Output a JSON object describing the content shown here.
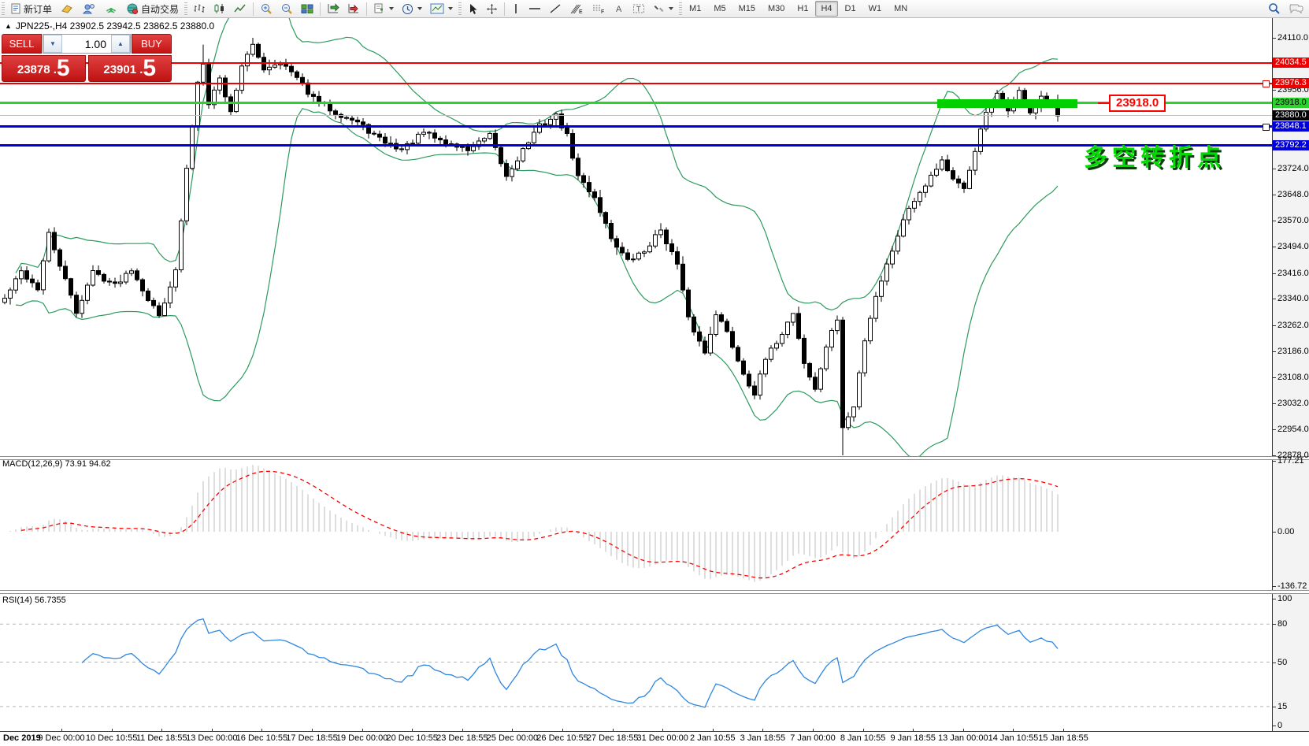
{
  "toolbar": {
    "new_order_label": "新订单",
    "autotrading_label": "自动交易",
    "timeframes": [
      "M1",
      "M5",
      "M15",
      "M30",
      "H1",
      "H4",
      "D1",
      "W1",
      "MN"
    ],
    "active_timeframe": "H4",
    "icons": [
      "new-order",
      "market",
      "profiles",
      "signals",
      "autotrading",
      "bar-chart",
      "candlestick-chart",
      "line-chart",
      "zoom-in",
      "zoom-out",
      "tile-windows",
      "auto-scroll",
      "chart-shift",
      "new-chart",
      "periods-clock",
      "chart-template",
      "cursor",
      "crosshair",
      "vertical-line",
      "horizontal-line",
      "trend-line",
      "fibonacci-expansion",
      "fibonacci-fan",
      "text",
      "text-label",
      "arrows",
      "search",
      "chat"
    ]
  },
  "chart": {
    "title": "JPN225-,H4  23902.5 23942.5 23862.5 23880.0",
    "symbol": "JPN225-",
    "period": "H4"
  },
  "trade_panel": {
    "sell_label": "SELL",
    "buy_label": "BUY",
    "volume": "1.00",
    "sell_price_small": "23878 .",
    "sell_price_big": "5",
    "buy_price_small": "23901 .",
    "buy_price_big": "5"
  },
  "price_axis": {
    "ticks": [
      "24110.0",
      "23956.0",
      "23724.0",
      "23648.0",
      "23570.0",
      "23494.0",
      "23416.0",
      "23340.0",
      "23262.0",
      "23186.0",
      "23108.0",
      "23032.0",
      "22954.0",
      "22878.0"
    ],
    "boxed": [
      {
        "text": "24034.5",
        "bg": "#ee0000",
        "fg": "#ffffff"
      },
      {
        "text": "23976.3",
        "bg": "#ee0000",
        "fg": "#ffffff"
      },
      {
        "text": "23918.0",
        "bg": "#2bd42b",
        "fg": "#000000"
      },
      {
        "text": "23880.0",
        "bg": "#000000",
        "fg": "#ffffff"
      },
      {
        "text": "23848.1",
        "bg": "#0000dd",
        "fg": "#ffffff"
      },
      {
        "text": "23792.2",
        "bg": "#0000dd",
        "fg": "#ffffff"
      }
    ]
  },
  "levels": [
    {
      "price": 24034.5,
      "color": "#ee0000",
      "thickness": 2,
      "handle": false
    },
    {
      "price": 23976.3,
      "color": "#ee0000",
      "thickness": 2,
      "handle": true
    },
    {
      "price": 23918.0,
      "color": "#2bd42b",
      "thickness": 3,
      "handle": false
    },
    {
      "price": 23880.0,
      "color": "#bcbcbc",
      "thickness": 1,
      "handle": false
    },
    {
      "price": 23848.1,
      "color": "#0000dd",
      "thickness": 3,
      "handle": true
    },
    {
      "price": 23792.2,
      "color": "#0000dd",
      "thickness": 3,
      "handle": false
    }
  ],
  "annotations": {
    "price_flag": "23918.0",
    "note": "多空转折点"
  },
  "indicators": {
    "macd": {
      "label": "MACD(12,26,9) 73.91 94.62",
      "axis": [
        "177.21",
        "0.00",
        "-136.72"
      ]
    },
    "rsi": {
      "label": "RSI(14) 56.7355",
      "axis": [
        "100",
        "80",
        "50",
        "15",
        "0"
      ],
      "levels": [
        80,
        50,
        15
      ]
    }
  },
  "time_axis": [
    "Dec 2019",
    "9 Dec 00:00",
    "10 Dec 10:55",
    "11 Dec 18:55",
    "13 Dec 00:00",
    "16 Dec 10:55",
    "17 Dec 18:55",
    "19 Dec 00:00",
    "20 Dec 10:55",
    "23 Dec 18:55",
    "25 Dec 00:00",
    "26 Dec 10:55",
    "27 Dec 18:55",
    "31 Dec 00:00",
    "2 Jan 10:55",
    "3 Jan 18:55",
    "7 Jan 00:00",
    "8 Jan 10:55",
    "9 Jan 18:55",
    "13 Jan 00:00",
    "14 Jan 10:55",
    "15 Jan 18:55"
  ],
  "colors": {
    "level_red": "#ee0000",
    "level_green": "#2bd42b",
    "level_blue": "#0000dd",
    "current_price_gray": "#bcbcbc",
    "bollinger": "#2c9a5e",
    "rsi_line": "#2e86e0",
    "macd_hist": "#bdbdbd",
    "macd_signal": "#ff0000",
    "note_green": "#00dc00",
    "bull_candle": "#ffffff",
    "bear_candle": "#000000"
  },
  "chart_data": {
    "type": "candlestick",
    "symbol": "JPN225-",
    "timeframe": "H4",
    "ohlc_current": {
      "open": 23902.5,
      "high": 23942.5,
      "low": 23862.5,
      "close": 23880.0
    },
    "y_axis_range": [
      22878.0,
      24110.0
    ],
    "price_levels": [
      24034.5,
      23976.3,
      23918.0,
      23880.0,
      23848.1,
      23792.2
    ],
    "bid": 23878.5,
    "ask": 23901.5,
    "macd_values": {
      "macd": 73.91,
      "signal": 94.62,
      "range": [
        -136.72,
        177.21
      ]
    },
    "rsi_value": 56.7355,
    "bars": 192,
    "extreme_high": 24110.0,
    "extreme_low": 22878.0,
    "close_anchors": [
      [
        0,
        23340
      ],
      [
        3,
        23420
      ],
      [
        6,
        23370
      ],
      [
        8,
        23530
      ],
      [
        10,
        23440
      ],
      [
        13,
        23300
      ],
      [
        16,
        23420
      ],
      [
        20,
        23380
      ],
      [
        23,
        23430
      ],
      [
        26,
        23340
      ],
      [
        28,
        23290
      ],
      [
        30,
        23380
      ],
      [
        31,
        23420
      ],
      [
        33,
        23720
      ],
      [
        35,
        23980
      ],
      [
        36,
        24040
      ],
      [
        37,
        23920
      ],
      [
        39,
        23990
      ],
      [
        41,
        23890
      ],
      [
        43,
        24030
      ],
      [
        45,
        24085
      ],
      [
        47,
        24020
      ],
      [
        50,
        24040
      ],
      [
        53,
        23990
      ],
      [
        56,
        23930
      ],
      [
        60,
        23890
      ],
      [
        64,
        23860
      ],
      [
        68,
        23810
      ],
      [
        72,
        23780
      ],
      [
        76,
        23830
      ],
      [
        80,
        23800
      ],
      [
        84,
        23780
      ],
      [
        88,
        23820
      ],
      [
        91,
        23700
      ],
      [
        94,
        23780
      ],
      [
        97,
        23850
      ],
      [
        100,
        23880
      ],
      [
        102,
        23820
      ],
      [
        104,
        23700
      ],
      [
        107,
        23640
      ],
      [
        110,
        23520
      ],
      [
        113,
        23450
      ],
      [
        116,
        23480
      ],
      [
        119,
        23545
      ],
      [
        122,
        23440
      ],
      [
        124,
        23280
      ],
      [
        127,
        23180
      ],
      [
        129,
        23300
      ],
      [
        131,
        23240
      ],
      [
        134,
        23120
      ],
      [
        136,
        23060
      ],
      [
        138,
        23160
      ],
      [
        141,
        23240
      ],
      [
        143,
        23300
      ],
      [
        145,
        23150
      ],
      [
        147,
        23070
      ],
      [
        149,
        23200
      ],
      [
        151,
        23280
      ],
      [
        152,
        22960
      ],
      [
        154,
        23020
      ],
      [
        156,
        23220
      ],
      [
        158,
        23350
      ],
      [
        160,
        23440
      ],
      [
        162,
        23530
      ],
      [
        164,
        23610
      ],
      [
        167,
        23680
      ],
      [
        170,
        23750
      ],
      [
        172,
        23690
      ],
      [
        174,
        23660
      ],
      [
        176,
        23780
      ],
      [
        178,
        23890
      ],
      [
        180,
        23940
      ],
      [
        182,
        23900
      ],
      [
        184,
        23950
      ],
      [
        186,
        23890
      ],
      [
        188,
        23930
      ],
      [
        190,
        23910
      ],
      [
        191,
        23880
      ]
    ]
  }
}
